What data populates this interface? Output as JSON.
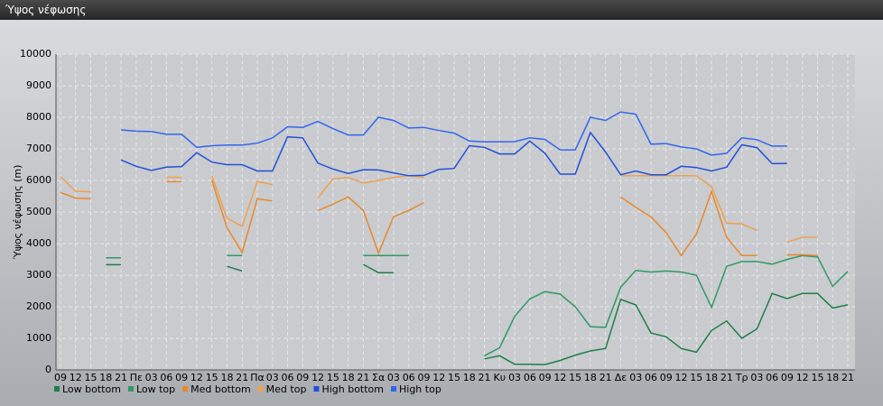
{
  "chart_data": {
    "type": "line",
    "title": "Ύψος νέφωσης",
    "y_label": "Ύψος νέφωσης (m)",
    "categories": [
      "09",
      "12",
      "15",
      "18",
      "21",
      "Πε",
      "03",
      "06",
      "09",
      "12",
      "15",
      "18",
      "21",
      "Πα",
      "03",
      "06",
      "09",
      "12",
      "15",
      "18",
      "21",
      "Σα",
      "03",
      "06",
      "09",
      "12",
      "15",
      "18",
      "21",
      "Κυ",
      "03",
      "06",
      "09",
      "12",
      "15",
      "18",
      "21",
      "Δε",
      "03",
      "06",
      "09",
      "12",
      "15",
      "18",
      "21",
      "Τρ",
      "03",
      "06",
      "09",
      "12",
      "15",
      "18",
      "21"
    ],
    "ylim": [
      0,
      10000
    ],
    "yticks": [
      0,
      1000,
      2000,
      3000,
      4000,
      5000,
      6000,
      7000,
      8000,
      9000,
      10000
    ],
    "grid": true,
    "legend": "bottom",
    "series": [
      {
        "name": "Low bottom",
        "color": "#1e7f4a",
        "values": [
          null,
          null,
          null,
          3330,
          3330,
          null,
          null,
          null,
          null,
          null,
          null,
          3280,
          3130,
          null,
          null,
          null,
          null,
          null,
          null,
          null,
          3340,
          3080,
          3080,
          null,
          null,
          null,
          null,
          null,
          350,
          450,
          180,
          180,
          170,
          300,
          470,
          600,
          680,
          2230,
          2060,
          1170,
          1050,
          680,
          560,
          1250,
          1550,
          1000,
          1300,
          2420,
          2260,
          2420,
          2420,
          1960,
          2060
        ]
      },
      {
        "name": "Low top",
        "color": "#2f9a63",
        "values": [
          null,
          null,
          null,
          3550,
          3550,
          null,
          null,
          null,
          null,
          null,
          null,
          3620,
          3620,
          null,
          null,
          null,
          null,
          null,
          null,
          null,
          3620,
          3620,
          3620,
          3620,
          null,
          null,
          null,
          null,
          450,
          700,
          1700,
          2250,
          2480,
          2400,
          2000,
          1370,
          1350,
          2620,
          3150,
          3100,
          3130,
          3100,
          3000,
          1980,
          3280,
          3430,
          3430,
          3350,
          3500,
          3620,
          3580,
          2650,
          3120
        ]
      },
      {
        "name": "Med bottom",
        "color": "#e8892a",
        "values": [
          5620,
          5440,
          5420,
          null,
          null,
          null,
          null,
          5960,
          5960,
          null,
          6000,
          4500,
          3720,
          5420,
          5350,
          null,
          null,
          5050,
          5250,
          5480,
          5050,
          3700,
          4850,
          5050,
          5300,
          null,
          null,
          null,
          null,
          null,
          null,
          null,
          null,
          null,
          null,
          null,
          null,
          5480,
          5150,
          4850,
          4350,
          3620,
          4300,
          5650,
          4200,
          3620,
          3620,
          null,
          3640,
          3650,
          3620,
          null,
          null
        ]
      },
      {
        "name": "Med top",
        "color": "#f0a050",
        "values": [
          6120,
          5660,
          5640,
          null,
          null,
          null,
          null,
          6100,
          6100,
          null,
          6150,
          4800,
          4550,
          5970,
          5870,
          null,
          null,
          5450,
          6050,
          6100,
          5920,
          6000,
          6100,
          6150,
          6100,
          null,
          null,
          null,
          null,
          null,
          null,
          null,
          null,
          null,
          null,
          null,
          null,
          6150,
          6150,
          6150,
          6150,
          6150,
          6150,
          5800,
          4650,
          4620,
          4420,
          null,
          4050,
          4200,
          4200,
          null,
          null
        ]
      },
      {
        "name": "High bottom",
        "color": "#2250d8",
        "values": [
          null,
          null,
          null,
          null,
          6650,
          6450,
          6320,
          6420,
          6440,
          6880,
          6580,
          6500,
          6500,
          6300,
          6300,
          7380,
          7350,
          6550,
          6360,
          6220,
          6340,
          6330,
          6240,
          6150,
          6160,
          6350,
          6380,
          7100,
          7050,
          6840,
          6840,
          7250,
          6860,
          6200,
          6200,
          7520,
          6900,
          6180,
          6300,
          6180,
          6180,
          6450,
          6410,
          6300,
          6420,
          7130,
          7040,
          6530,
          6540,
          null,
          null,
          null,
          null
        ]
      },
      {
        "name": "High top",
        "color": "#3366ee",
        "values": [
          null,
          null,
          null,
          null,
          7600,
          7560,
          7550,
          7460,
          7460,
          7050,
          7100,
          7120,
          7120,
          7180,
          7350,
          7700,
          7680,
          7870,
          7640,
          7440,
          7440,
          8000,
          7900,
          7660,
          7680,
          7580,
          7500,
          7250,
          7220,
          7220,
          7230,
          7350,
          7300,
          6970,
          6970,
          8000,
          7900,
          8170,
          8100,
          7150,
          7170,
          7060,
          7000,
          6800,
          6860,
          7350,
          7290,
          7090,
          7090,
          null,
          null,
          null,
          null
        ]
      }
    ]
  }
}
